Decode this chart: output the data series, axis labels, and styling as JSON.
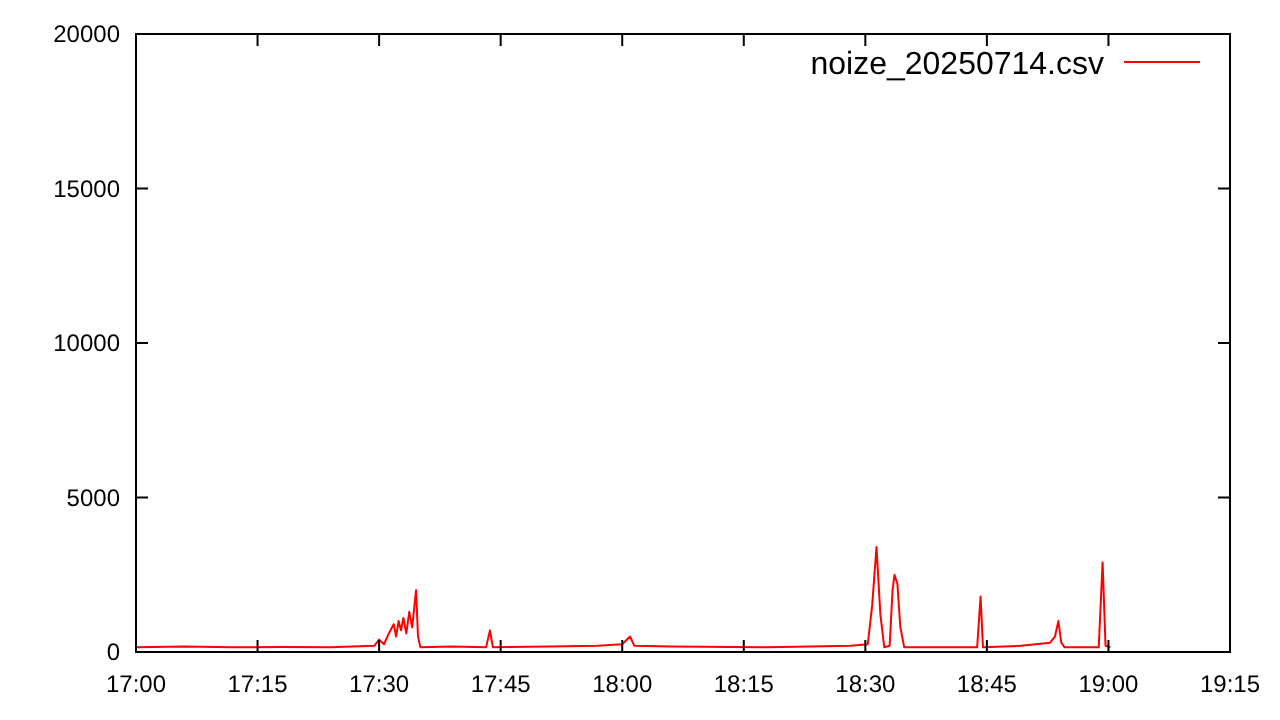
{
  "chart_data": {
    "type": "line",
    "legend": "top right",
    "grid": false,
    "xlim": [
      17,
      19.25
    ],
    "xticks": [
      {
        "value": 17,
        "label": "17:00"
      },
      {
        "value": 17.25,
        "label": "17:15"
      },
      {
        "value": 17.5,
        "label": "17:30"
      },
      {
        "value": 17.75,
        "label": "17:45"
      },
      {
        "value": 18,
        "label": "18:00"
      },
      {
        "value": 18.25,
        "label": "18:15"
      },
      {
        "value": 18.5,
        "label": "18:30"
      },
      {
        "value": 18.75,
        "label": "18:45"
      },
      {
        "value": 19,
        "label": "19:00"
      },
      {
        "value": 19.25,
        "label": "19:15"
      }
    ],
    "ylim": [
      0,
      20000
    ],
    "yticks": [
      0,
      5000,
      10000,
      15000,
      20000
    ],
    "series": [
      {
        "name": "noize_20250714.csv",
        "color": "#ff0000",
        "x": [
          17.0,
          17.1,
          17.2,
          17.3,
          17.4,
          17.49,
          17.5,
          17.51,
          17.52,
          17.53,
          17.535,
          17.54,
          17.545,
          17.55,
          17.556,
          17.562,
          17.568,
          17.572,
          17.576,
          17.58,
          17.585,
          17.65,
          17.72,
          17.728,
          17.734,
          17.85,
          17.95,
          18.0,
          18.016,
          18.025,
          18.1,
          18.3,
          18.47,
          18.505,
          18.514,
          18.523,
          18.531,
          18.539,
          18.55,
          18.556,
          18.56,
          18.566,
          18.572,
          18.58,
          18.65,
          18.73,
          18.737,
          18.742,
          18.82,
          18.88,
          18.89,
          18.897,
          18.903,
          18.91,
          18.98,
          18.988,
          18.994,
          19.004
        ],
        "values": [
          150,
          180,
          150,
          160,
          150,
          200,
          400,
          250,
          600,
          900,
          500,
          1000,
          700,
          1100,
          600,
          1300,
          800,
          1400,
          2000,
          500,
          150,
          180,
          150,
          700,
          150,
          180,
          200,
          250,
          500,
          200,
          180,
          150,
          200,
          250,
          1500,
          3400,
          1200,
          150,
          200,
          2000,
          2500,
          2200,
          800,
          150,
          150,
          150,
          1800,
          150,
          200,
          300,
          500,
          1000,
          300,
          150,
          150,
          2900,
          200,
          150
        ]
      }
    ]
  }
}
